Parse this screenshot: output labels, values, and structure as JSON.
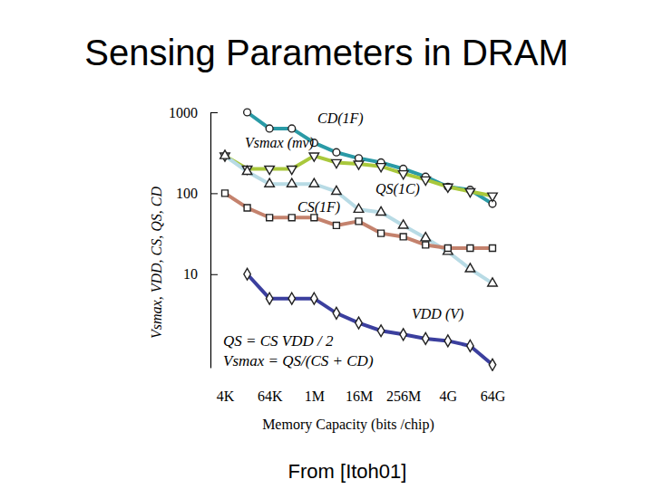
{
  "chart_data": {
    "type": "line",
    "title": "Sensing Parameters in DRAM",
    "source": "From [Itoh01]",
    "x_label": "Memory Capacity (bits /chip)",
    "y_label": "Vsmax, VDD, CS, QS, CD",
    "categories": [
      "4K",
      null,
      "64K",
      null,
      "1M",
      null,
      "16M",
      null,
      "256M",
      null,
      "4G",
      null,
      "64G"
    ],
    "log": "y",
    "ylim": [
      0.7,
      1000
    ],
    "yticks": [
      10,
      100,
      1000
    ],
    "annotations": [
      "QS = CS VDD / 2",
      "Vsmax = QS/(CS + CD)"
    ],
    "series": [
      {
        "name": "CD(1F)",
        "color": "#2a9aa6",
        "marker": "circle",
        "values": [
          null,
          1000,
          630,
          630,
          420,
          320,
          270,
          240,
          200,
          160,
          120,
          110,
          74
        ]
      },
      {
        "name": "Vsmax (mv)",
        "color": "#a9c83c",
        "marker": "triangle-down",
        "values": [
          290,
          200,
          200,
          200,
          290,
          240,
          230,
          215,
          175,
          147,
          120,
          105,
          93
        ]
      },
      {
        "name": "QS(1C)",
        "color": "#b8dbe5",
        "marker": "triangle",
        "values": [
          290,
          185,
          130,
          130,
          130,
          105,
          63,
          58,
          40,
          28,
          19,
          11.6,
          7.7
        ]
      },
      {
        "name": "CS(1F)",
        "color": "#c4826d",
        "marker": "square",
        "values": [
          100,
          66,
          50,
          50,
          50,
          40,
          45,
          32,
          29,
          23,
          21,
          21,
          21
        ]
      },
      {
        "name": "VDD (V)",
        "color": "#3b3f9e",
        "marker": "diamond",
        "values": [
          null,
          10,
          5,
          5,
          5,
          3.3,
          2.5,
          2.0,
          1.8,
          1.6,
          1.5,
          1.3,
          0.76
        ]
      }
    ]
  }
}
